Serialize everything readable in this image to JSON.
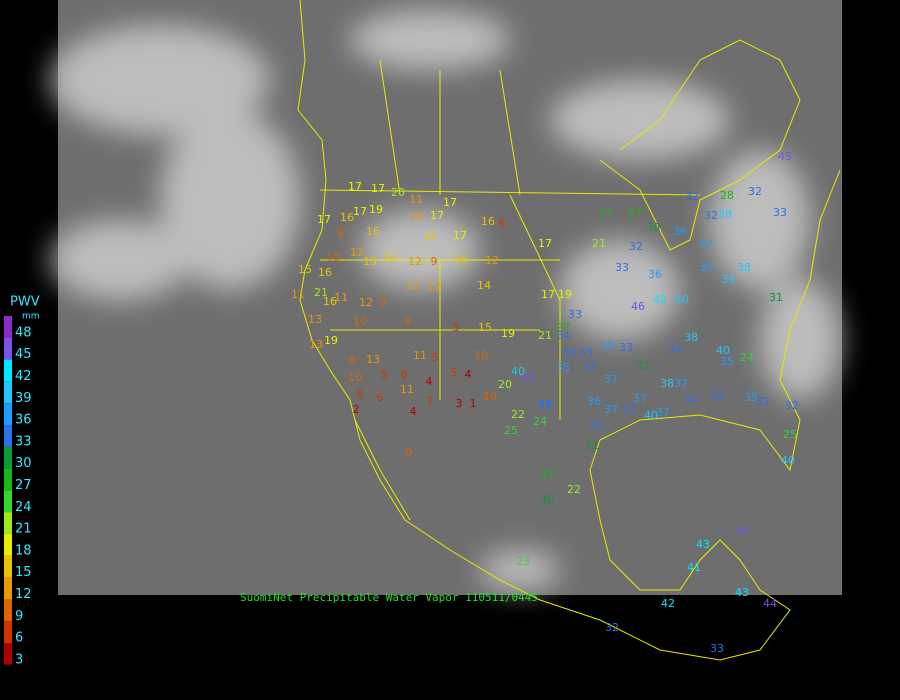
{
  "legend": {
    "title": "PWV",
    "unit": "mm",
    "ticks": [
      48,
      45,
      42,
      39,
      36,
      33,
      30,
      27,
      24,
      21,
      18,
      15,
      12,
      9,
      6,
      3
    ],
    "colors": [
      "#8a2ccc",
      "#7a52e6",
      "#00e8ff",
      "#22c6ff",
      "#1f9cff",
      "#2f6fe8",
      "#0a9a3a",
      "#18b818",
      "#30d830",
      "#a0e81e",
      "#e8f000",
      "#e8c400",
      "#e89800",
      "#e06400",
      "#d03400",
      "#b00000"
    ]
  },
  "caption": "SuomiNet Precipitable Water Vapor 110511/0445",
  "stations": [
    17,
    17,
    20,
    17,
    19,
    11,
    12,
    17,
    17,
    16,
    6,
    17,
    16,
    9,
    16,
    15,
    17,
    17,
    10,
    12,
    15,
    16,
    12,
    9,
    16,
    12,
    15,
    16,
    11,
    21,
    16,
    11,
    12,
    9,
    12,
    12,
    14,
    17,
    19,
    10,
    8,
    5,
    15,
    19,
    13,
    13,
    19,
    8,
    13,
    11,
    5,
    10,
    10,
    5,
    6,
    4,
    11,
    5,
    4,
    40,
    20,
    10,
    6,
    6,
    2,
    4,
    7,
    3,
    1,
    22,
    24,
    25,
    9,
    33,
    27,
    22,
    30,
    23,
    21,
    27,
    27,
    30,
    36,
    32,
    28,
    32,
    32,
    32,
    36,
    33,
    37,
    38,
    33,
    35,
    38,
    31,
    39,
    46,
    42,
    40,
    33,
    27,
    21,
    34,
    33,
    33,
    35,
    33,
    34,
    38,
    40,
    35,
    24,
    44,
    35,
    32,
    37,
    31,
    37,
    38,
    34,
    35,
    32,
    33,
    36,
    37,
    33,
    37,
    40,
    37,
    34,
    32,
    25,
    40,
    34,
    31,
    43,
    41,
    44,
    42,
    32,
    33,
    44,
    43,
    45
  ]
}
